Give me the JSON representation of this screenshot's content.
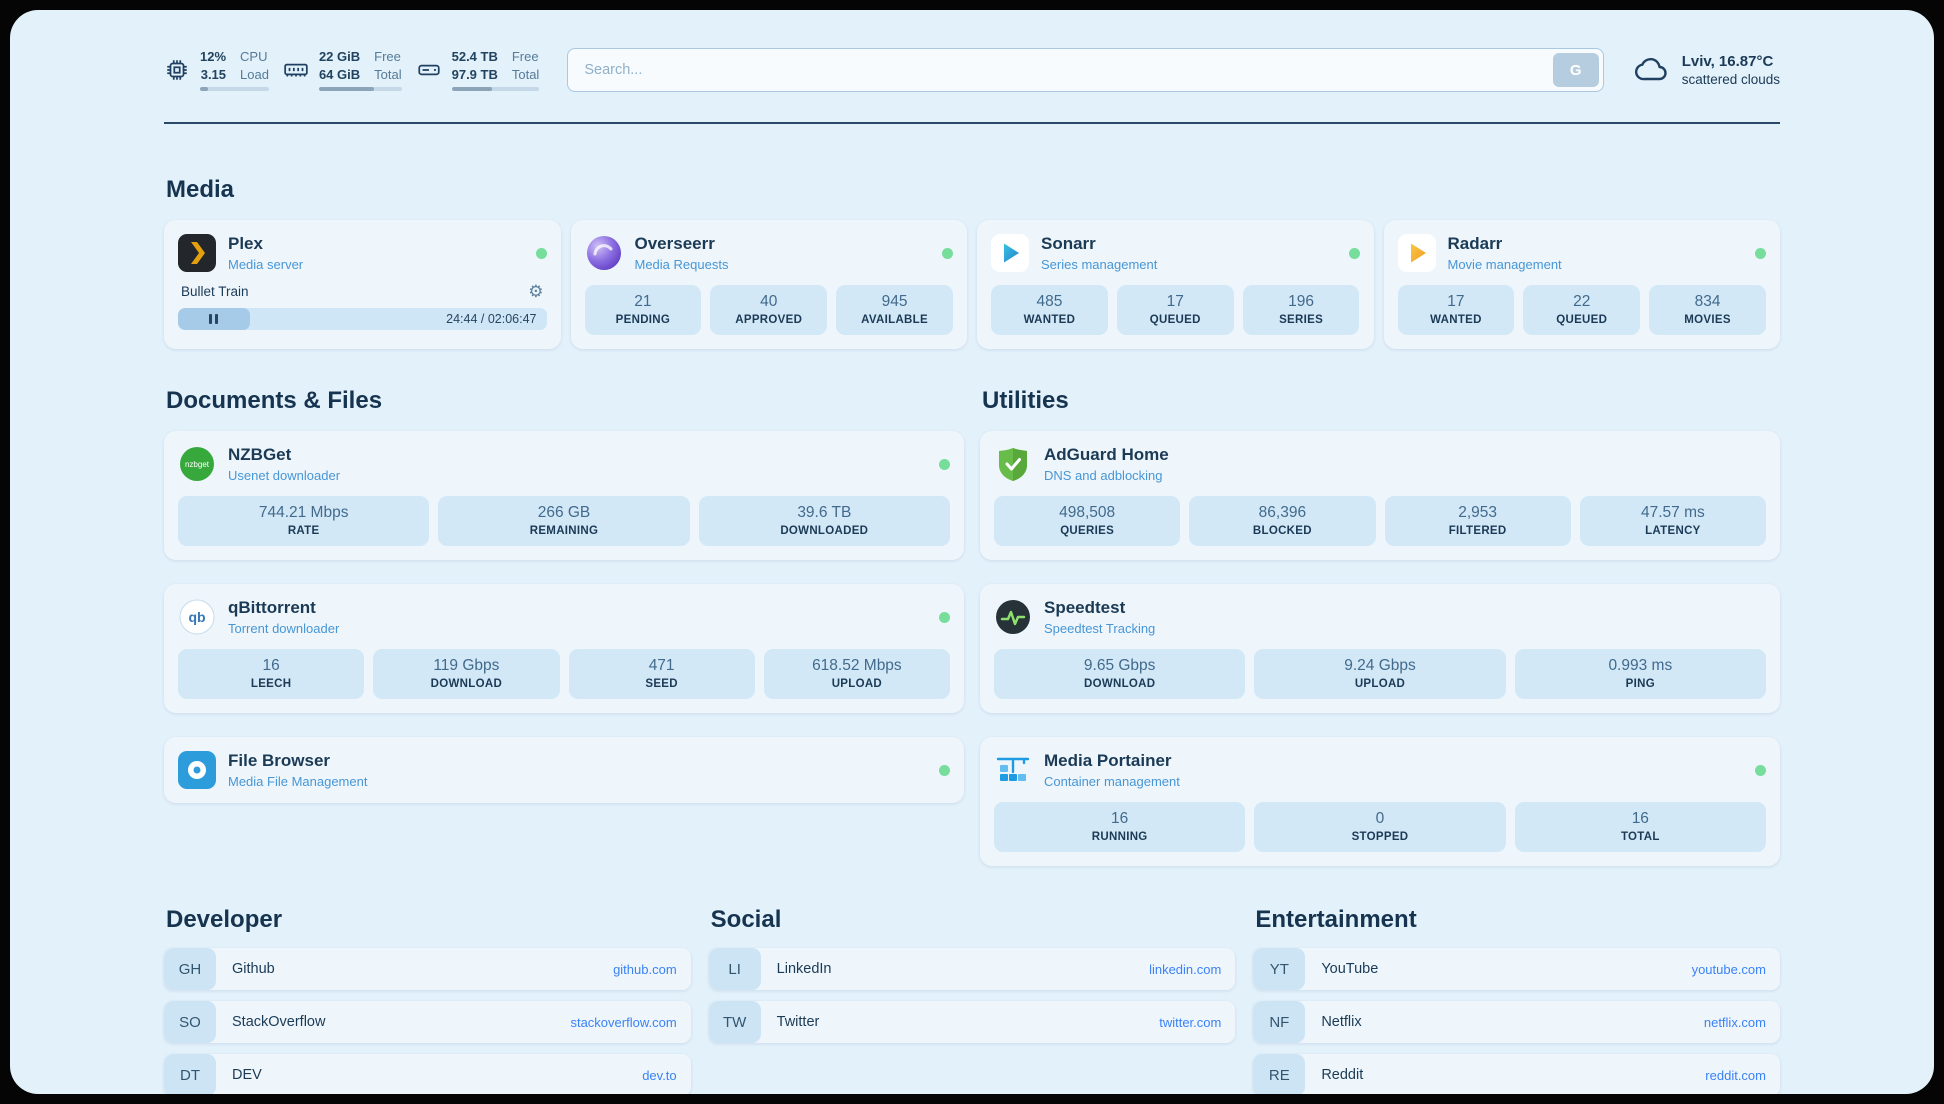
{
  "topbar": {
    "cpu": {
      "value": "12%",
      "load": "3.15",
      "label_value": "CPU",
      "label_load": "Load",
      "percent": 12
    },
    "memory": {
      "free": "22 GiB",
      "total": "64 GiB",
      "label_free": "Free",
      "label_total": "Total",
      "percent": 66
    },
    "disk": {
      "free": "52.4 TB",
      "total": "97.9 TB",
      "label_free": "Free",
      "label_total": "Total",
      "percent": 46
    },
    "search": {
      "placeholder": "Search...",
      "button_label": "G"
    },
    "weather": {
      "location": "Lviv, 16.87°C",
      "condition": "scattered clouds"
    }
  },
  "media": {
    "title": "Media",
    "plex": {
      "name": "Plex",
      "subtitle": "Media server",
      "now_playing_title": "Bullet Train",
      "time_display": "24:44 / 02:06:47",
      "progress_percent": 19.5
    },
    "overseerr": {
      "name": "Overseerr",
      "subtitle": "Media Requests",
      "stats": [
        {
          "value": "21",
          "label": "PENDING"
        },
        {
          "value": "40",
          "label": "APPROVED"
        },
        {
          "value": "945",
          "label": "AVAILABLE"
        }
      ]
    },
    "sonarr": {
      "name": "Sonarr",
      "subtitle": "Series management",
      "stats": [
        {
          "value": "485",
          "label": "WANTED"
        },
        {
          "value": "17",
          "label": "QUEUED"
        },
        {
          "value": "196",
          "label": "SERIES"
        }
      ]
    },
    "radarr": {
      "name": "Radarr",
      "subtitle": "Movie management",
      "stats": [
        {
          "value": "17",
          "label": "WANTED"
        },
        {
          "value": "22",
          "label": "QUEUED"
        },
        {
          "value": "834",
          "label": "MOVIES"
        }
      ]
    }
  },
  "documents": {
    "title": "Documents & Files",
    "nzbget": {
      "name": "NZBGet",
      "subtitle": "Usenet downloader",
      "stats": [
        {
          "value": "744.21 Mbps",
          "label": "RATE"
        },
        {
          "value": "266 GB",
          "label": "REMAINING"
        },
        {
          "value": "39.6 TB",
          "label": "DOWNLOADED"
        }
      ]
    },
    "qbittorrent": {
      "name": "qBittorrent",
      "subtitle": "Torrent downloader",
      "stats": [
        {
          "value": "16",
          "label": "LEECH"
        },
        {
          "value": "119 Gbps",
          "label": "DOWNLOAD"
        },
        {
          "value": "471",
          "label": "SEED"
        },
        {
          "value": "618.52 Mbps",
          "label": "UPLOAD"
        }
      ]
    },
    "filebrowser": {
      "name": "File Browser",
      "subtitle": "Media File Management"
    }
  },
  "utilities": {
    "title": "Utilities",
    "adguard": {
      "name": "AdGuard Home",
      "subtitle": "DNS and adblocking",
      "stats": [
        {
          "value": "498,508",
          "label": "QUERIES"
        },
        {
          "value": "86,396",
          "label": "BLOCKED"
        },
        {
          "value": "2,953",
          "label": "FILTERED"
        },
        {
          "value": "47.57 ms",
          "label": "LATENCY"
        }
      ]
    },
    "speedtest": {
      "name": "Speedtest",
      "subtitle": "Speedtest Tracking",
      "stats": [
        {
          "value": "9.65 Gbps",
          "label": "DOWNLOAD"
        },
        {
          "value": "9.24 Gbps",
          "label": "UPLOAD"
        },
        {
          "value": "0.993 ms",
          "label": "PING"
        }
      ]
    },
    "portainer": {
      "name": "Media Portainer",
      "subtitle": "Container management",
      "stats": [
        {
          "value": "16",
          "label": "RUNNING"
        },
        {
          "value": "0",
          "label": "STOPPED"
        },
        {
          "value": "16",
          "label": "TOTAL"
        }
      ]
    }
  },
  "bookmarks": {
    "developer": {
      "title": "Developer",
      "items": [
        {
          "abbr": "GH",
          "name": "Github",
          "url": "github.com"
        },
        {
          "abbr": "SO",
          "name": "StackOverflow",
          "url": "stackoverflow.com"
        },
        {
          "abbr": "DT",
          "name": "DEV",
          "url": "dev.to"
        }
      ]
    },
    "social": {
      "title": "Social",
      "items": [
        {
          "abbr": "LI",
          "name": "LinkedIn",
          "url": "linkedin.com"
        },
        {
          "abbr": "TW",
          "name": "Twitter",
          "url": "twitter.com"
        }
      ]
    },
    "entertainment": {
      "title": "Entertainment",
      "items": [
        {
          "abbr": "YT",
          "name": "YouTube",
          "url": "youtube.com"
        },
        {
          "abbr": "NF",
          "name": "Netflix",
          "url": "netflix.com"
        },
        {
          "abbr": "RE",
          "name": "Reddit",
          "url": "reddit.com"
        }
      ]
    }
  },
  "icons": {
    "nzbget_label": "nzbget",
    "qb_label": "qb"
  },
  "colors": {
    "page_bg": "#e3f1fb",
    "card_bg": "#eef6fc",
    "stat_bg": "#d3e8f7",
    "text_dark": "#1b3a55",
    "subtitle_blue": "#4796d6",
    "link_blue": "#3b82f6",
    "status_green": "#76dd9b"
  }
}
